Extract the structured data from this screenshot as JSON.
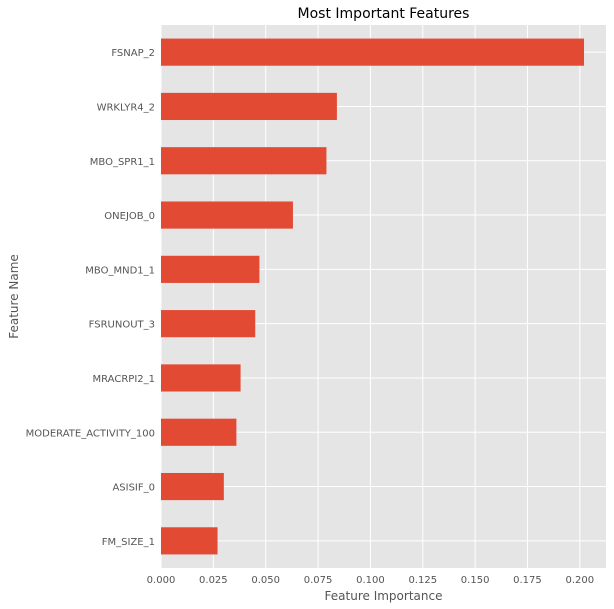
{
  "chart_data": {
    "type": "bar",
    "orientation": "horizontal",
    "title": "Most Important Features",
    "xlabel": "Feature Importance",
    "ylabel": "Feature Name",
    "xlim": [
      0,
      0.2125
    ],
    "xticks": [
      "0.000",
      "0.025",
      "0.050",
      "0.075",
      "0.100",
      "0.125",
      "0.150",
      "0.175",
      "0.200"
    ],
    "grid": true,
    "categories": [
      "FSNAP_2",
      "WRKLYR4_2",
      "MBO_SPR1_1",
      "ONEJOB_0",
      "MBO_MND1_1",
      "FSRUNOUT_3",
      "MRACRPI2_1",
      "MODERATE_ACTIVITY_100",
      "ASISIF_0",
      "FM_SIZE_1"
    ],
    "values": [
      0.202,
      0.084,
      0.079,
      0.063,
      0.047,
      0.045,
      0.038,
      0.036,
      0.03,
      0.027
    ],
    "colors": {
      "bar": "#E24A33",
      "plot_background": "#E5E5E5",
      "grid": "#FFFFFF",
      "text": "#555555"
    }
  }
}
